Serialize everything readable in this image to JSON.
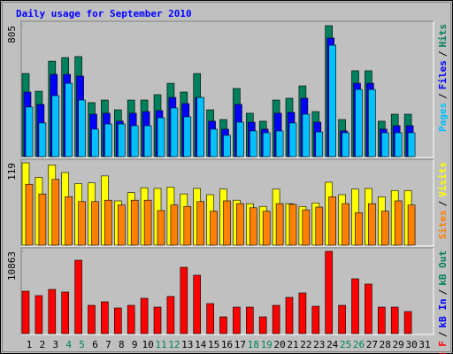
{
  "title": "Daily usage for September 2010",
  "legend_separator": "/",
  "chart_data": [
    {
      "type": "bar",
      "ylim": [
        0,
        805
      ],
      "yticks": [
        805
      ],
      "series": [
        {
          "name": "Hits",
          "color": "#00805c",
          "values": [
            511,
            402,
            587,
            609,
            615,
            332,
            348,
            288,
            348,
            348,
            381,
            451,
            397,
            511,
            288,
            228,
            419,
            267,
            218,
            348,
            359,
            435,
            277,
            805,
            228,
            528,
            528,
            218,
            261,
            261,
            0
          ]
        },
        {
          "name": "Files",
          "color": "#0000ff",
          "values": [
            397,
            321,
            506,
            506,
            495,
            261,
            267,
            218,
            267,
            277,
            283,
            364,
            326,
            364,
            218,
            169,
            321,
            212,
            169,
            267,
            272,
            359,
            212,
            729,
            158,
            451,
            451,
            169,
            190,
            190,
            0
          ]
        },
        {
          "name": "Pages",
          "color": "#00c0ff",
          "values": [
            305,
            207,
            375,
            451,
            348,
            169,
            201,
            201,
            190,
            190,
            239,
            299,
            245,
            364,
            169,
            131,
            212,
            158,
            147,
            158,
            207,
            261,
            152,
            685,
            147,
            413,
            413,
            147,
            147,
            147,
            0
          ]
        }
      ]
    },
    {
      "type": "bar",
      "ylim": [
        0,
        119
      ],
      "yticks": [
        119
      ],
      "series": [
        {
          "name": "Visits",
          "color": "#ffff00",
          "values": [
            119,
            98,
            116,
            105,
            89,
            90,
            100,
            64,
            76,
            83,
            82,
            84,
            74,
            82,
            73,
            81,
            65,
            60,
            56,
            81,
            60,
            56,
            61,
            91,
            73,
            81,
            82,
            70,
            79,
            79,
            0
          ]
        },
        {
          "name": "Sites",
          "color": "#ff8000",
          "values": [
            88,
            74,
            95,
            70,
            63,
            63,
            65,
            58,
            65,
            65,
            50,
            58,
            56,
            63,
            49,
            64,
            60,
            54,
            49,
            60,
            59,
            51,
            55,
            70,
            60,
            47,
            60,
            49,
            64,
            58,
            0
          ]
        }
      ]
    },
    {
      "type": "bar",
      "ylim": [
        0,
        10863
      ],
      "yticks": [
        10863
      ],
      "categories": [
        "1",
        "2",
        "3",
        "4",
        "5",
        "6",
        "7",
        "8",
        "9",
        "10",
        "11",
        "12",
        "13",
        "14",
        "15",
        "16",
        "17",
        "18",
        "19",
        "20",
        "21",
        "22",
        "23",
        "24",
        "25",
        "26",
        "27",
        "28",
        "29",
        "30",
        "31"
      ],
      "category_colors": [
        "#000000",
        "#000000",
        "#000000",
        "#00805c",
        "#00805c",
        "#000000",
        "#000000",
        "#000000",
        "#000000",
        "#000000",
        "#00805c",
        "#00805c",
        "#000000",
        "#000000",
        "#000000",
        "#000000",
        "#000000",
        "#00805c",
        "#00805c",
        "#000000",
        "#000000",
        "#000000",
        "#000000",
        "#000000",
        "#00805c",
        "#00805c",
        "#000000",
        "#000000",
        "#000000",
        "#000000",
        "#000000"
      ],
      "series": [
        {
          "name": "kB Out",
          "color": "#00805c",
          "values": [
            0,
            0,
            0,
            0,
            0,
            0,
            0,
            0,
            0,
            0,
            0,
            0,
            0,
            0,
            0,
            0,
            0,
            0,
            0,
            0,
            0,
            0,
            0,
            0,
            0,
            0,
            0,
            0,
            0,
            0,
            0
          ]
        },
        {
          "name": "kB In",
          "color": "#0000ff",
          "values": [
            0,
            0,
            0,
            0,
            0,
            0,
            0,
            0,
            0,
            0,
            0,
            0,
            0,
            0,
            0,
            0,
            0,
            0,
            0,
            0,
            0,
            0,
            0,
            0,
            0,
            0,
            0,
            0,
            0,
            0,
            0
          ]
        },
        {
          "name": "kB F",
          "color": "#ff0000",
          "values": [
            5607,
            5023,
            5840,
            5490,
            9695,
            3738,
            4205,
            3387,
            3738,
            4672,
            3504,
            4906,
            8760,
            7709,
            3971,
            2219,
            3504,
            3504,
            2219,
            3738,
            4789,
            5373,
            3621,
            10863,
            3738,
            7242,
            6541,
            3504,
            3504,
            2920,
            0
          ]
        }
      ]
    }
  ]
}
